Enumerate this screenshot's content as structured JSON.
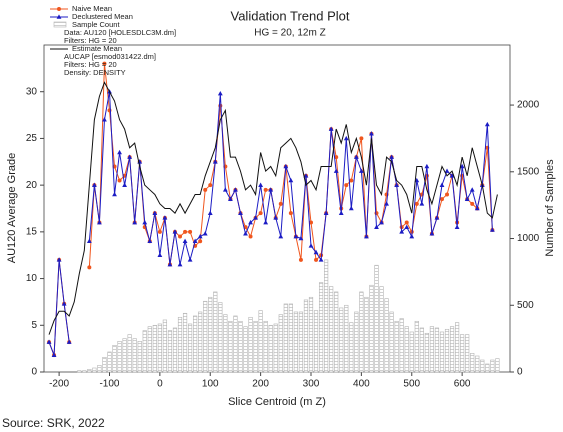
{
  "chart_data": {
    "type": "line",
    "title": "Validation Trend Plot",
    "subtitle": "HG = 20, 12m Z",
    "x_label": "Slice Centroid (m Z)",
    "y_label": "AU120 Average Grade",
    "y2_label": "Number of Samples",
    "source": "Source: SRK, 2022",
    "legend": "upper left",
    "xlim": [
      -230,
      695
    ],
    "xticks": [
      -200,
      -100,
      0,
      100,
      200,
      300,
      400,
      500,
      600
    ],
    "ylim": [
      0,
      35
    ],
    "yticks": [
      0,
      5,
      10,
      15,
      20,
      25,
      30
    ],
    "y2lim": [
      0,
      2450
    ],
    "y2ticks": [
      0,
      500,
      1000,
      1500,
      2000
    ],
    "x": [
      -220,
      -210,
      -200,
      -190,
      -180,
      -170,
      -160,
      -150,
      -140,
      -130,
      -120,
      -110,
      -100,
      -90,
      -80,
      -70,
      -60,
      -50,
      -40,
      -30,
      -20,
      -10,
      0,
      10,
      20,
      30,
      40,
      50,
      60,
      70,
      80,
      90,
      100,
      110,
      120,
      130,
      140,
      150,
      160,
      170,
      180,
      190,
      200,
      210,
      220,
      230,
      240,
      250,
      260,
      270,
      280,
      290,
      300,
      310,
      320,
      330,
      340,
      350,
      360,
      370,
      380,
      390,
      400,
      410,
      420,
      430,
      440,
      450,
      460,
      470,
      480,
      490,
      500,
      510,
      520,
      530,
      540,
      550,
      560,
      570,
      580,
      590,
      600,
      610,
      620,
      630,
      640,
      650,
      660,
      670
    ],
    "series": [
      {
        "name": "Naive Mean",
        "type": "line",
        "marker": "circle",
        "color": "#f0561e",
        "values": [
          3.2,
          1.8,
          12,
          7.3,
          3.2,
          null,
          null,
          null,
          11.2,
          20,
          16,
          33,
          28,
          22,
          20.5,
          21,
          23,
          16,
          22.5,
          15.5,
          14,
          17,
          15,
          16.5,
          11.5,
          15,
          14.5,
          15,
          15,
          13.5,
          14,
          19.5,
          20,
          22.5,
          28.5,
          22,
          18.5,
          19.5,
          17,
          15.5,
          14.5,
          16.5,
          17,
          19.5,
          19.5,
          16.5,
          18,
          22,
          17,
          14.5,
          12,
          21,
          16,
          12,
          12.5,
          17,
          26,
          23,
          17.5,
          20,
          20.5,
          23,
          25,
          14.5,
          25.5,
          17,
          16,
          19,
          23,
          20,
          15.5,
          16,
          15,
          18,
          19,
          21,
          14.8,
          16.5,
          18.5,
          19,
          21,
          16,
          21,
          18.5,
          18,
          17.5,
          20,
          24,
          15.2,
          null
        ]
      },
      {
        "name": "Declustered Mean",
        "type": "line",
        "marker": "triangle",
        "color": "#1c1cc4",
        "values": [
          3.2,
          1.8,
          12,
          7.3,
          3.2,
          null,
          null,
          null,
          14,
          20,
          16,
          27,
          30,
          19,
          23.5,
          20,
          23,
          16,
          22.5,
          16,
          14,
          17,
          12.5,
          16.5,
          11.5,
          15,
          11.5,
          14,
          12,
          14,
          14.5,
          14.8,
          17,
          22.5,
          29.8,
          19.5,
          18.5,
          19.5,
          17,
          14.8,
          16,
          16.5,
          20,
          16,
          19.5,
          16.5,
          14.5,
          22,
          20.5,
          14.5,
          14.3,
          21,
          13.5,
          12.8,
          12,
          17,
          26,
          21.5,
          17,
          25,
          17.5,
          23,
          21.5,
          14.5,
          25.5,
          15.5,
          16,
          18,
          23,
          20,
          15,
          15.5,
          14.5,
          20.5,
          18,
          22,
          14.8,
          16.5,
          20,
          21.5,
          21,
          15.5,
          22,
          18.5,
          19.5,
          17.5,
          20,
          26.5,
          15.2,
          null
        ]
      },
      {
        "name": "Sample Count",
        "type": "bar",
        "axis": "y2",
        "color": "#b4b4b4",
        "notes": [
          "Data: AU120 [HOLESDLC3M.dm]",
          "Filters: HG = 20"
        ],
        "values": [
          0,
          0,
          0,
          0,
          0,
          0,
          10,
          10,
          20,
          30,
          50,
          110,
          150,
          200,
          230,
          250,
          280,
          250,
          230,
          310,
          340,
          350,
          360,
          390,
          310,
          330,
          410,
          440,
          360,
          420,
          450,
          530,
          560,
          600,
          520,
          430,
          380,
          420,
          380,
          340,
          410,
          380,
          460,
          380,
          350,
          360,
          430,
          510,
          510,
          450,
          450,
          540,
          560,
          460,
          670,
          840,
          640,
          600,
          480,
          500,
          370,
          450,
          600,
          560,
          650,
          800,
          640,
          550,
          450,
          380,
          400,
          340,
          300,
          380,
          330,
          290,
          340,
          330,
          300,
          320,
          340,
          370,
          280,
          280,
          140,
          120,
          90,
          60,
          90,
          100
        ]
      },
      {
        "name": "Estimate Mean",
        "type": "line",
        "marker": "none",
        "color": "#111111",
        "notes": [
          "AUCAP [esmod031422.dm]",
          "Filters: HG = 20",
          "Density: DENSITY"
        ],
        "values": [
          4,
          5.5,
          6.5,
          6.5,
          6,
          7.5,
          10.5,
          13,
          20,
          27,
          29.5,
          31,
          30,
          29,
          27,
          26,
          24,
          24.5,
          22,
          20,
          19.5,
          19,
          18,
          17.5,
          17.5,
          17,
          18,
          17,
          18,
          19,
          19,
          21,
          22.5,
          24,
          27,
          28,
          23,
          23,
          21.5,
          19.5,
          20,
          19,
          23.5,
          21.5,
          22,
          21,
          24,
          24.5,
          25,
          24,
          22.5,
          20,
          20.5,
          19.5,
          22,
          22,
          22,
          26,
          24.5,
          26.5,
          23.5,
          25,
          23,
          20,
          25,
          20,
          19,
          23,
          22.5,
          20.5,
          20,
          19,
          17,
          22,
          22,
          19.5,
          18,
          20,
          22,
          21,
          21.5,
          20,
          23,
          21,
          24,
          22,
          20,
          17,
          16.5,
          19
        ]
      }
    ]
  }
}
